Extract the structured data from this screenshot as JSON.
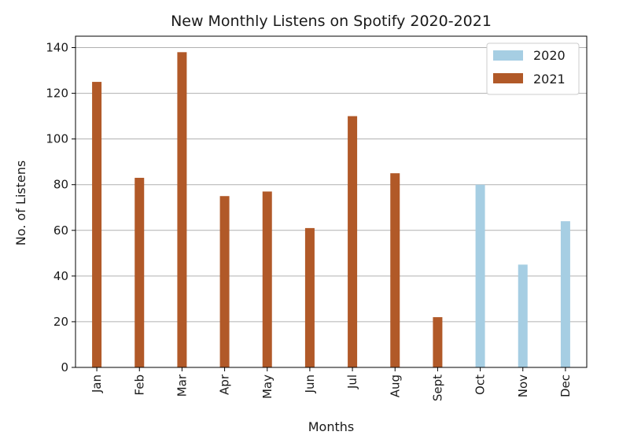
{
  "chart_data": {
    "type": "bar",
    "title": "New Monthly Listens on Spotify 2020-2021",
    "xlabel": "Months",
    "ylabel": "No. of Listens",
    "categories": [
      "Jan",
      "Feb",
      "Mar",
      "Apr",
      "May",
      "Jun",
      "Jul",
      "Aug",
      "Sept",
      "Oct",
      "Nov",
      "Dec"
    ],
    "ylim": [
      0,
      145
    ],
    "yticks": [
      0,
      20,
      40,
      60,
      80,
      100,
      120,
      140
    ],
    "grid": "horizontal",
    "legend_position": "top-right",
    "series": [
      {
        "name": "2020",
        "color": "#a6cee3",
        "values": [
          0,
          0,
          0,
          0,
          0,
          0,
          0,
          0,
          0,
          80,
          45,
          64
        ]
      },
      {
        "name": "2021",
        "color": "#b15928",
        "values": [
          125,
          83,
          138,
          75,
          77,
          61,
          110,
          85,
          22,
          0,
          0,
          0
        ]
      }
    ]
  }
}
